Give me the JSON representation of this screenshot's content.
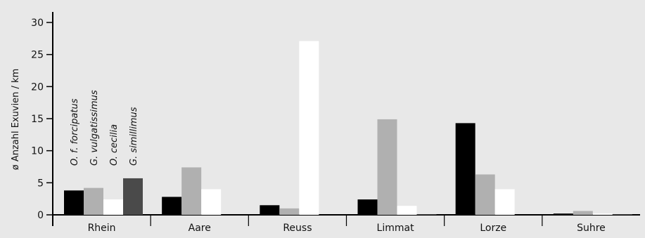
{
  "chart_data": {
    "type": "bar",
    "categories": [
      "Rhein",
      "Aare",
      "Reuss",
      "Limmat",
      "Lorze",
      "Suhre"
    ],
    "series": [
      {
        "name": "O. f. forcipatus",
        "color": "#000000",
        "values": [
          3.8,
          2.8,
          1.5,
          2.4,
          14.3,
          0.2
        ]
      },
      {
        "name": "G. vulgatissimus",
        "color": "#b0b0b0",
        "values": [
          4.2,
          7.4,
          1.0,
          14.9,
          6.3,
          0.6
        ]
      },
      {
        "name": "O. cecilia",
        "color": "#ffffff",
        "values": [
          2.4,
          4.0,
          27.1,
          1.4,
          4.0,
          0.2
        ]
      },
      {
        "name": "G. simillimus",
        "color": "#4a4a4a",
        "values": [
          5.7,
          0.0,
          0.0,
          0.1,
          0.0,
          0.1
        ]
      }
    ],
    "ylabel": "ø Anzahl Exuvien / km",
    "ylim": [
      0,
      30
    ],
    "yticks": [
      0,
      5,
      10,
      15,
      20,
      25,
      30
    ],
    "grid": false,
    "legend": "vertical labels above first category group"
  }
}
